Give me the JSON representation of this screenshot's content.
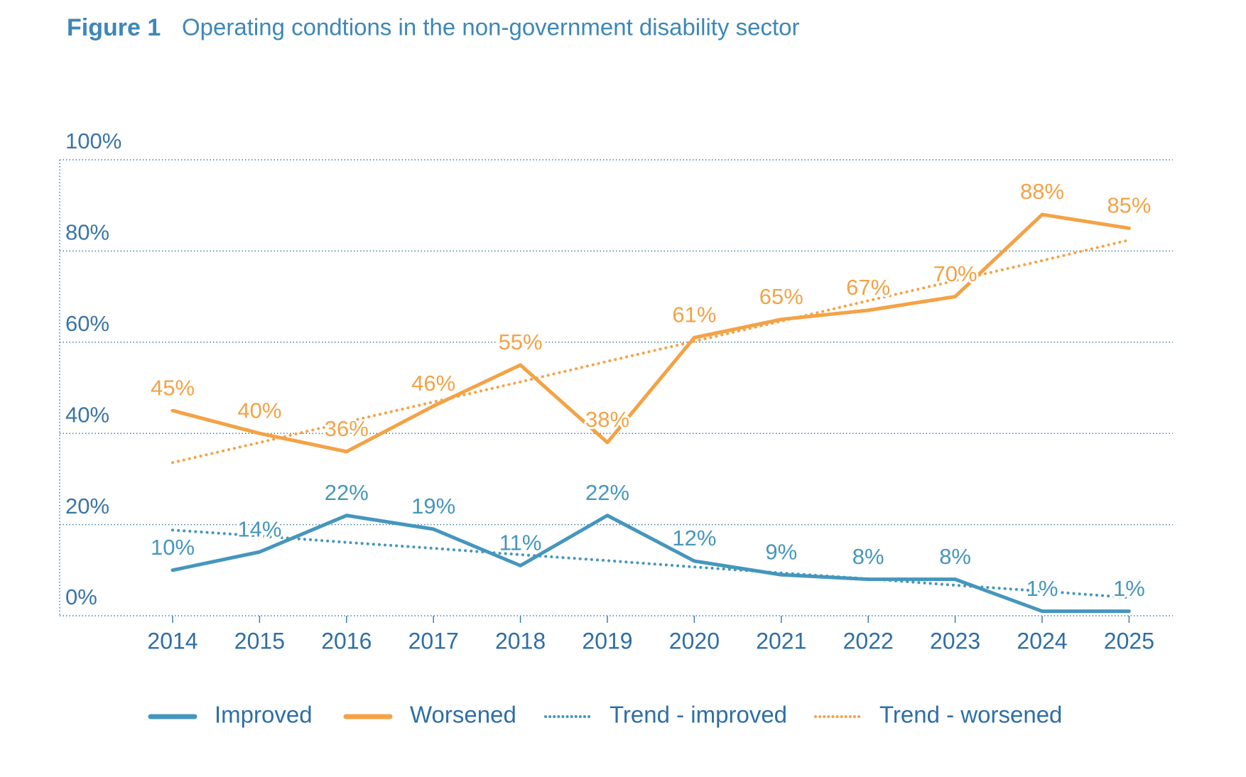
{
  "chart_data": {
    "type": "line",
    "title": "Figure 1",
    "subtitle": "Operating condtions in the non-government disability sector",
    "categories": [
      "2014",
      "2015",
      "2016",
      "2017",
      "2018",
      "2019",
      "2020",
      "2021",
      "2022",
      "2023",
      "2024",
      "2025"
    ],
    "series": [
      {
        "name": "Improved",
        "color": "#4596bd",
        "style": "solid",
        "values": [
          10,
          14,
          22,
          19,
          11,
          22,
          12,
          9,
          8,
          8,
          1,
          1
        ],
        "value_labels": [
          "10%",
          "14%",
          "22%",
          "19%",
          "11%",
          "22%",
          "12%",
          "9%",
          "8%",
          "8%",
          "1%",
          "1%"
        ]
      },
      {
        "name": "Worsened",
        "color": "#f4a246",
        "style": "solid",
        "values": [
          45,
          40,
          36,
          46,
          55,
          38,
          61,
          65,
          67,
          70,
          88,
          85
        ],
        "value_labels": [
          "45%",
          "40%",
          "36%",
          "46%",
          "55%",
          "38%",
          "61%",
          "65%",
          "67%",
          "70%",
          "88%",
          "85%"
        ]
      },
      {
        "name": "Trend - improved",
        "color": "#4596bd",
        "style": "dotted",
        "values": [
          18.8,
          17.5,
          16.1,
          14.8,
          13.4,
          12.1,
          10.7,
          9.4,
          8.1,
          6.7,
          5.4,
          4.0
        ]
      },
      {
        "name": "Trend - worsened",
        "color": "#f4a246",
        "style": "dotted",
        "values": [
          33.6,
          38.0,
          42.5,
          46.9,
          51.3,
          55.8,
          60.2,
          64.6,
          69.1,
          73.5,
          77.9,
          82.4
        ]
      }
    ],
    "ylim": [
      0,
      100
    ],
    "yticks": [
      {
        "value": 0,
        "label": "0%"
      },
      {
        "value": 20,
        "label": "20%"
      },
      {
        "value": 40,
        "label": "40%"
      },
      {
        "value": 60,
        "label": "60%"
      },
      {
        "value": 80,
        "label": "80%"
      },
      {
        "value": 100,
        "label": "100%"
      }
    ],
    "grid": true,
    "legend": "bottom"
  }
}
